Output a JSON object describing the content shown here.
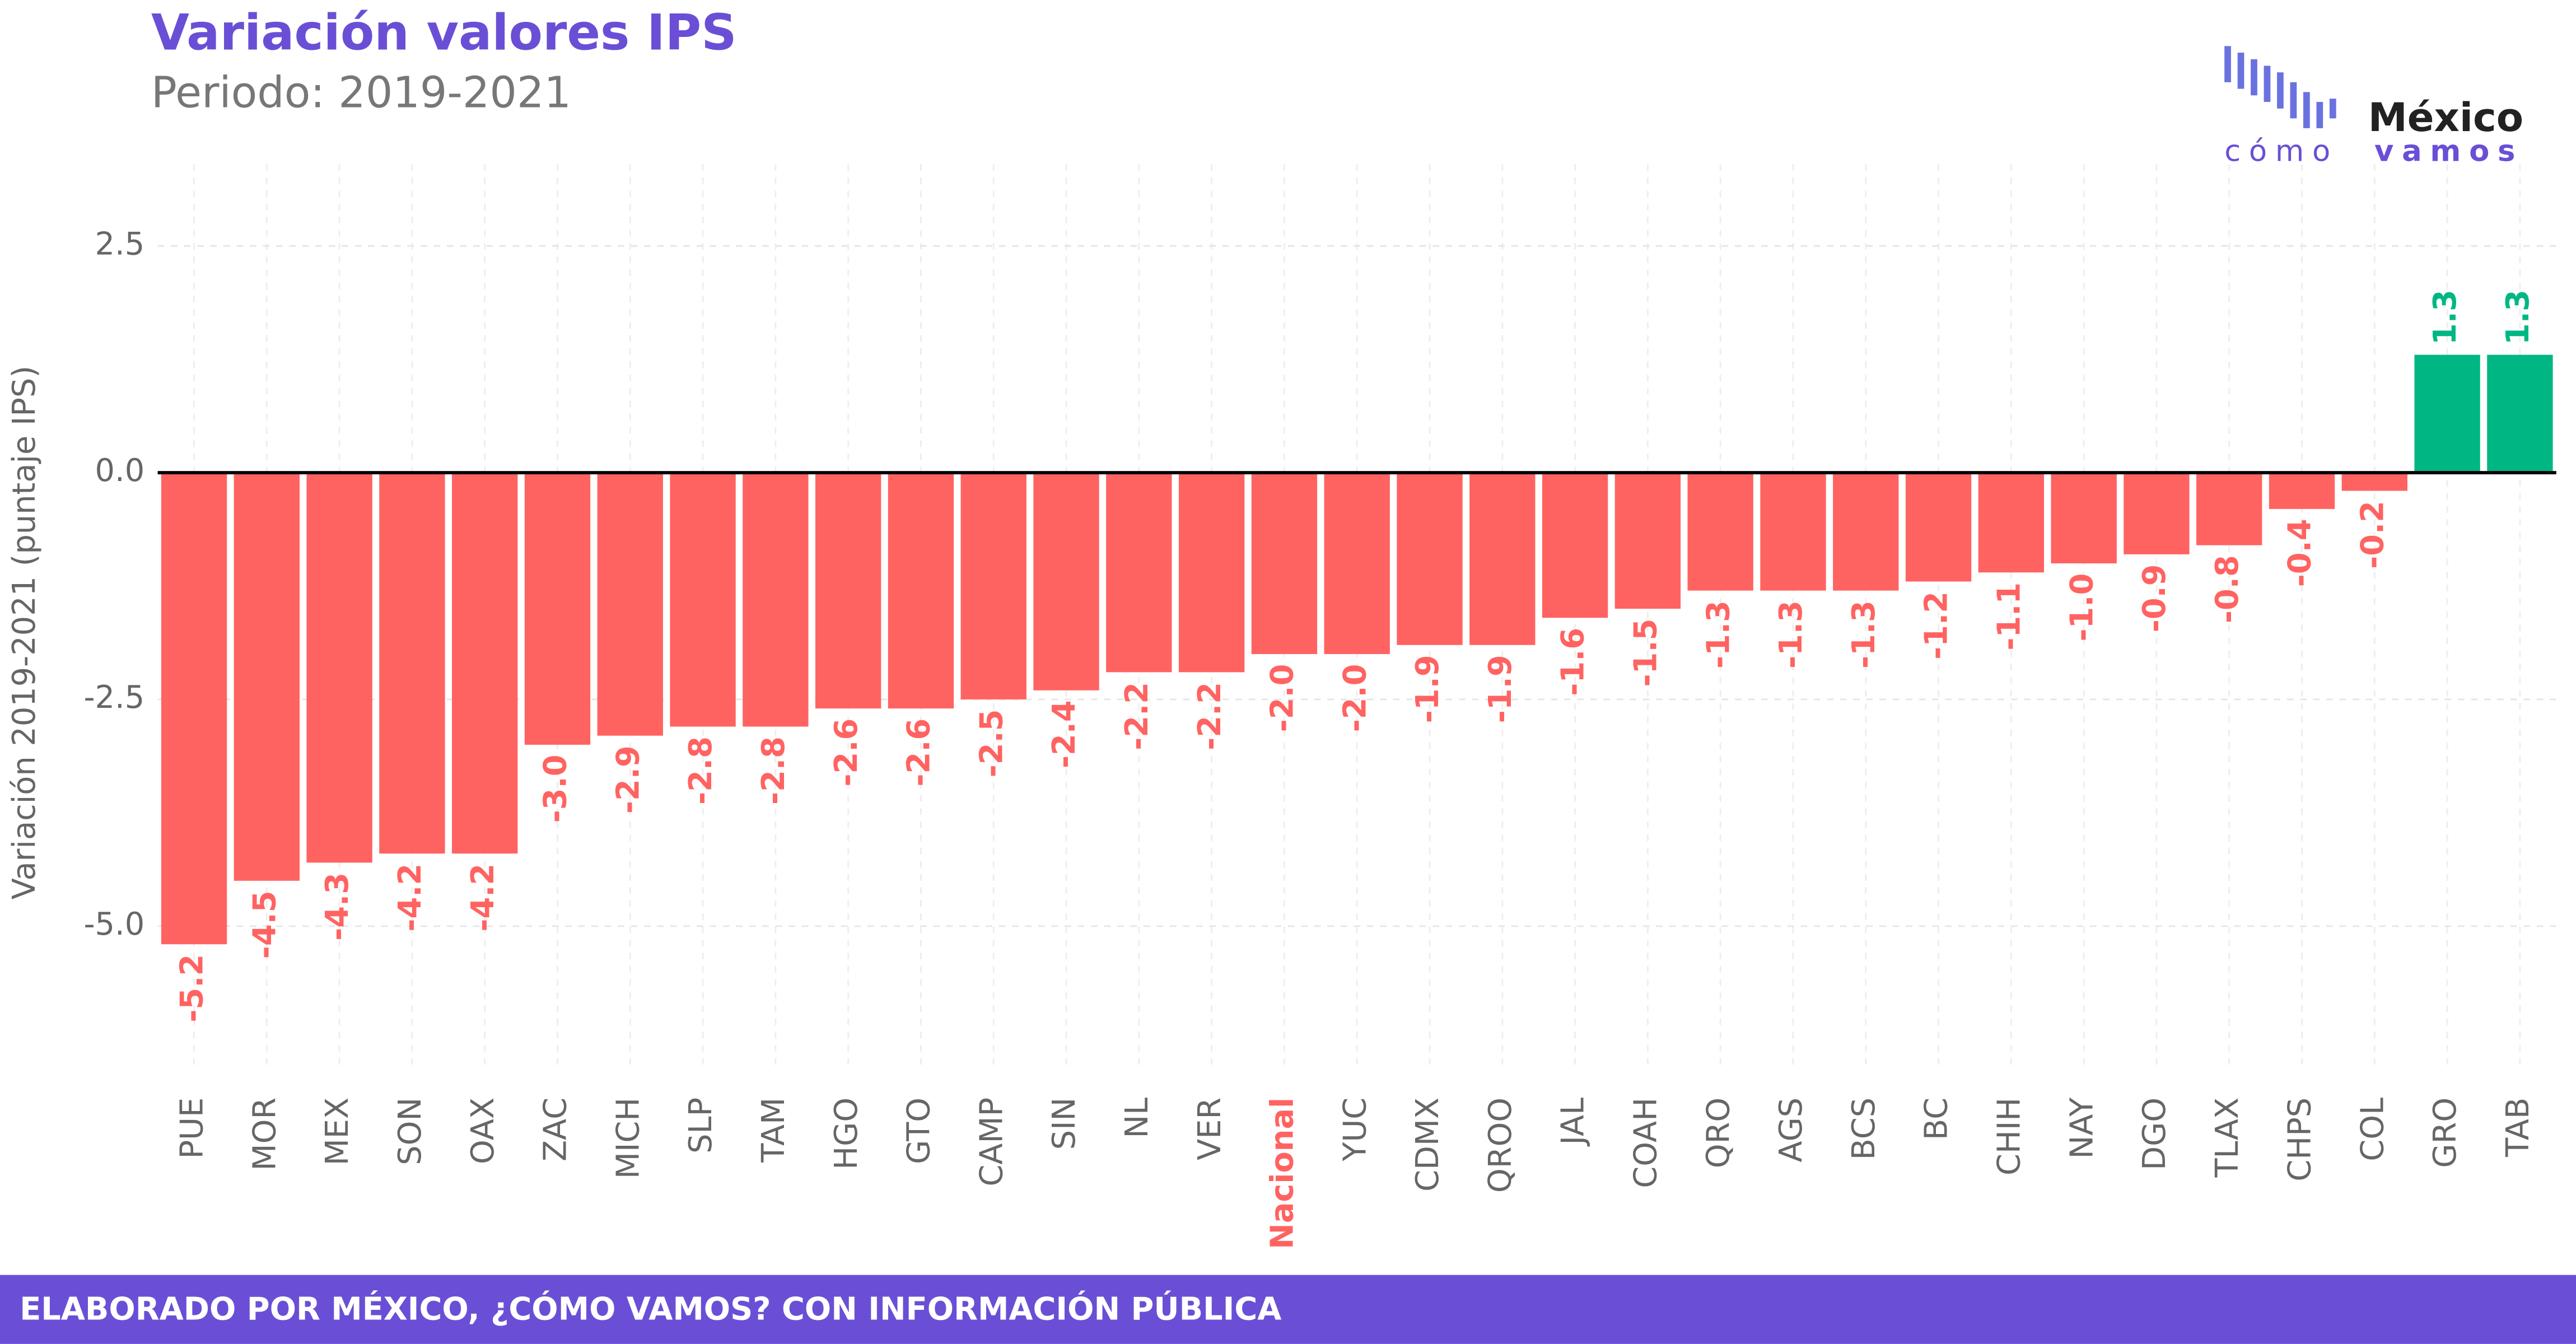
{
  "chart_data": {
    "type": "bar",
    "title": "Variación valores IPS",
    "subtitle": "Periodo: 2019-2021",
    "y_label": "Variación 2019-2021 (puntaje IPS)",
    "categories": [
      "PUE",
      "MOR",
      "MEX",
      "SON",
      "OAX",
      "ZAC",
      "MICH",
      "SLP",
      "TAM",
      "HGO",
      "GTO",
      "CAMP",
      "SIN",
      "NL",
      "VER",
      "Nacional",
      "YUC",
      "CDMX",
      "QROO",
      "JAL",
      "COAH",
      "QRO",
      "AGS",
      "BCS",
      "BC",
      "CHIH",
      "NAY",
      "DGO",
      "TLAX",
      "CHPS",
      "COL",
      "GRO",
      "TAB"
    ],
    "values": [
      -5.2,
      -4.5,
      -4.3,
      -4.2,
      -4.2,
      -3.0,
      -2.9,
      -2.8,
      -2.8,
      -2.6,
      -2.6,
      -2.5,
      -2.4,
      -2.2,
      -2.2,
      -2.0,
      -2.0,
      -1.9,
      -1.9,
      -1.6,
      -1.5,
      -1.3,
      -1.3,
      -1.3,
      -1.2,
      -1.1,
      -1.0,
      -0.9,
      -0.8,
      -0.4,
      -0.2,
      1.3,
      1.3
    ],
    "value_labels": [
      "-5.2",
      "-4.5",
      "-4.3",
      "-4.2",
      "-4.2",
      "-3.0",
      "-2.9",
      "-2.8",
      "-2.8",
      "-2.6",
      "-2.6",
      "-2.5",
      "-2.4",
      "-2.2",
      "-2.2",
      "-2.0",
      "-2.0",
      "-1.9",
      "-1.9",
      "-1.6",
      "-1.5",
      "-1.3",
      "-1.3",
      "-1.3",
      "-1.2",
      "-1.1",
      "-1.0",
      "-0.9",
      "-0.8",
      "-0.4",
      "-0.2",
      "1.3",
      "1.3"
    ],
    "negative_color": "#ff6361",
    "positive_color": "#00b783",
    "highlight_category": "Nacional",
    "ylim": [
      -6.6,
      3.4
    ],
    "yticks": [
      2.5,
      {
        "value": 0,
        "label": "0.0"
      },
      -2.5,
      {
        "value": -5,
        "label": "-5.0"
      }
    ],
    "grid": true,
    "logo": {
      "name": "México",
      "line1": "cómo",
      "line2": "vamos"
    },
    "footer": "ELABORADO POR MÉXICO, ¿CÓMO VAMOS? CON INFORMACIÓN PÚBLICA"
  }
}
